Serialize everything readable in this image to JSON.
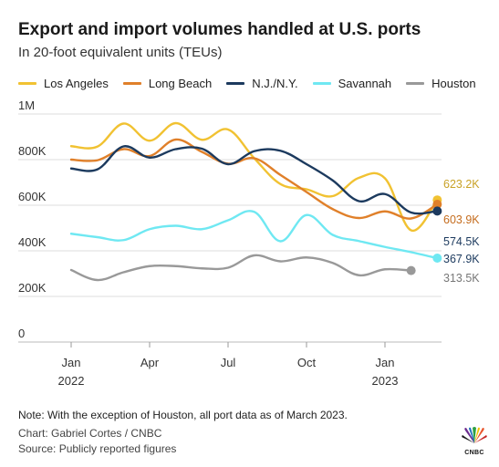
{
  "header": {
    "title": "Export and import volumes handled at U.S. ports",
    "subtitle": "In 20-foot equivalent units (TEUs)"
  },
  "chart_data": {
    "type": "line",
    "title": "Export and import volumes handled at U.S. ports",
    "subtitle": "In 20-foot equivalent units (TEUs)",
    "xlabel": "",
    "ylabel": "",
    "ylim": [
      0,
      1000000
    ],
    "y_ticks": [
      {
        "value": 0,
        "label": "0"
      },
      {
        "value": 200000,
        "label": "200K"
      },
      {
        "value": 400000,
        "label": "400K"
      },
      {
        "value": 600000,
        "label": "600K"
      },
      {
        "value": 800000,
        "label": "800K"
      },
      {
        "value": 1000000,
        "label": "1M"
      }
    ],
    "x_ticks": [
      {
        "value": 0,
        "label": "Jan",
        "sub": "2022"
      },
      {
        "value": 3,
        "label": "Apr",
        "sub": ""
      },
      {
        "value": 6,
        "label": "Jul",
        "sub": ""
      },
      {
        "value": 9,
        "label": "Oct",
        "sub": ""
      },
      {
        "value": 12,
        "label": "Jan",
        "sub": "2023"
      }
    ],
    "x_months": [
      "Jan 2022",
      "Feb 2022",
      "Mar 2022",
      "Apr 2022",
      "May 2022",
      "Jun 2022",
      "Jul 2022",
      "Aug 2022",
      "Sep 2022",
      "Oct 2022",
      "Nov 2022",
      "Dec 2022",
      "Jan 2023",
      "Feb 2023",
      "Mar 2023"
    ],
    "xlim": [
      -0.1,
      14.2
    ],
    "grid": "horizontal",
    "legend_position": "top",
    "series": [
      {
        "name": "Los Angeles",
        "color": "#f1c232",
        "end_label": "623.2K",
        "values": [
          859000,
          857000,
          958000,
          883000,
          960000,
          887000,
          932000,
          806000,
          693000,
          670000,
          640000,
          720000,
          718000,
          490000,
          623200
        ]
      },
      {
        "name": "Long Beach",
        "color": "#e0802a",
        "end_label": "603.9K",
        "values": [
          800000,
          797000,
          846000,
          816000,
          888000,
          834000,
          782000,
          806000,
          733000,
          658000,
          583000,
          544000,
          573000,
          542000,
          603900
        ]
      },
      {
        "name": "N.J./N.Y.",
        "color": "#1c3a5e",
        "end_label": "574.5K",
        "values": [
          761000,
          757000,
          858000,
          809000,
          846000,
          848000,
          780000,
          837000,
          839000,
          780000,
          709000,
          618000,
          649000,
          568000,
          574500
        ]
      },
      {
        "name": "Savannah",
        "color": "#6fe8f2",
        "end_label": "367.9K",
        "values": [
          475000,
          460000,
          447000,
          495000,
          510000,
          495000,
          534000,
          571000,
          442000,
          557000,
          470000,
          443000,
          417000,
          394000,
          367900
        ]
      },
      {
        "name": "Houston",
        "color": "#999999",
        "end_label": "313.5K",
        "values": [
          316000,
          272000,
          306000,
          333000,
          333000,
          323000,
          326000,
          380000,
          354000,
          371000,
          347000,
          293000,
          319000,
          313500,
          null
        ]
      }
    ]
  },
  "footer": {
    "note": "Note: With the exception of Houston, all port data as of March 2023.",
    "credit": "Chart: Gabriel Cortes / CNBC",
    "source": "Source: Publicly reported figures"
  },
  "logo": {
    "text": "CNBC",
    "icon": "peacock-icon"
  }
}
